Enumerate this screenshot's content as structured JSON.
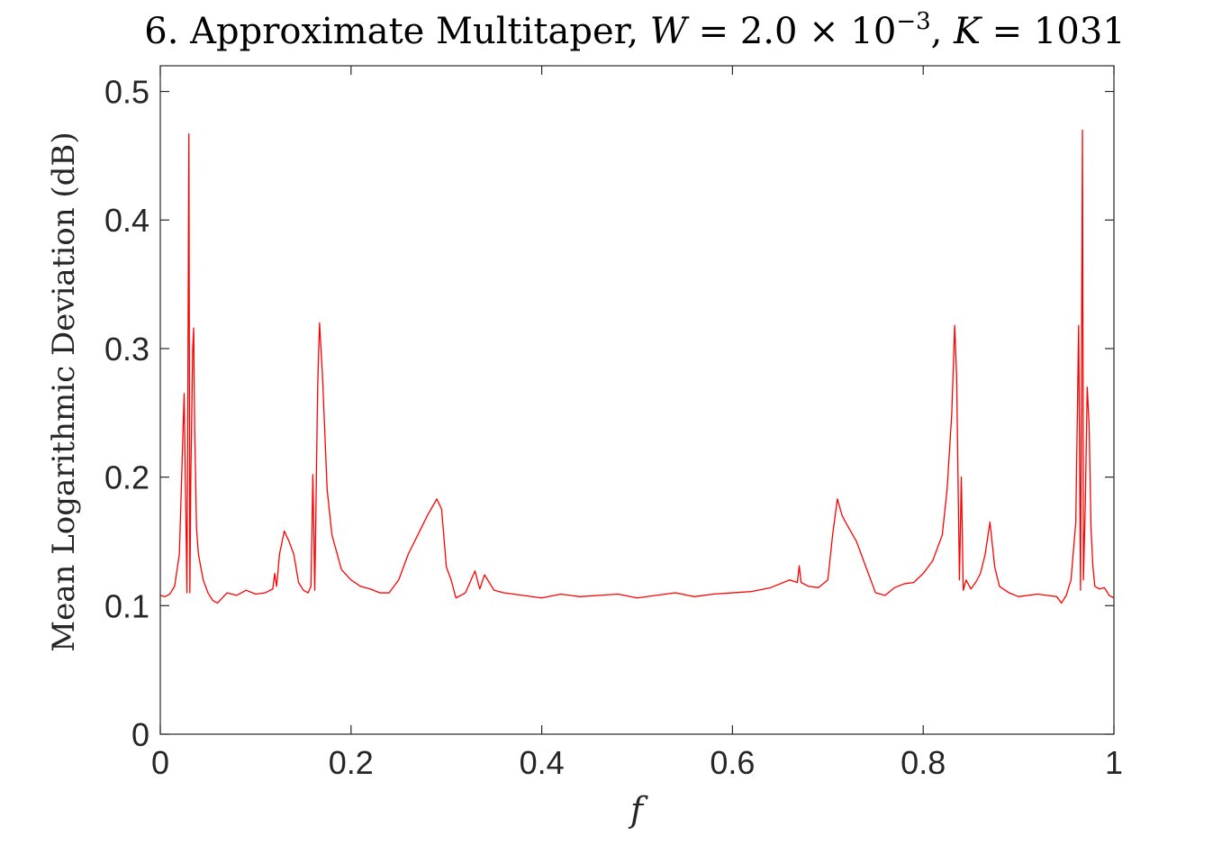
{
  "chart_data": {
    "type": "line",
    "title": "6. Approximate Multitaper, W = 2.0 × 10⁻³, K = 1031",
    "title_parts": {
      "prefix": "6. Approximate Multitaper, ",
      "w_symbol": "W",
      "w_value": " = 2.0 × 10",
      "w_exponent": "−3",
      "separator": ", ",
      "k_symbol": "K",
      "k_value": " = 1031"
    },
    "xlabel": "f",
    "ylabel": "Mean Logarithmic Deviation (dB)",
    "xlim": [
      0,
      1
    ],
    "ylim": [
      0,
      0.52
    ],
    "xticks": [
      0,
      0.2,
      0.4,
      0.6,
      0.8,
      1
    ],
    "xtick_labels": [
      "0",
      "0.2",
      "0.4",
      "0.6",
      "0.8",
      "1"
    ],
    "yticks": [
      0,
      0.1,
      0.2,
      0.3,
      0.4,
      0.5
    ],
    "ytick_labels": [
      "0",
      "0.1",
      "0.2",
      "0.3",
      "0.4",
      "0.5"
    ],
    "grid": false,
    "line_color": "#ff0000",
    "x": [
      0,
      0.005,
      0.01,
      0.015,
      0.02,
      0.025,
      0.028,
      0.03,
      0.031,
      0.032,
      0.034,
      0.035,
      0.036,
      0.038,
      0.04,
      0.045,
      0.05,
      0.055,
      0.06,
      0.07,
      0.08,
      0.09,
      0.1,
      0.11,
      0.118,
      0.12,
      0.122,
      0.125,
      0.13,
      0.135,
      0.14,
      0.145,
      0.15,
      0.155,
      0.158,
      0.16,
      0.162,
      0.165,
      0.167,
      0.17,
      0.175,
      0.18,
      0.19,
      0.2,
      0.21,
      0.22,
      0.23,
      0.24,
      0.25,
      0.26,
      0.27,
      0.28,
      0.29,
      0.295,
      0.3,
      0.305,
      0.31,
      0.32,
      0.33,
      0.335,
      0.34,
      0.345,
      0.35,
      0.36,
      0.38,
      0.4,
      0.42,
      0.44,
      0.46,
      0.48,
      0.5,
      0.52,
      0.54,
      0.56,
      0.58,
      0.6,
      0.62,
      0.64,
      0.66,
      0.668,
      0.67,
      0.672,
      0.68,
      0.69,
      0.7,
      0.705,
      0.71,
      0.715,
      0.72,
      0.73,
      0.74,
      0.75,
      0.76,
      0.77,
      0.78,
      0.79,
      0.8,
      0.81,
      0.82,
      0.825,
      0.83,
      0.833,
      0.835,
      0.838,
      0.84,
      0.842,
      0.845,
      0.85,
      0.855,
      0.86,
      0.865,
      0.87,
      0.875,
      0.88,
      0.89,
      0.9,
      0.91,
      0.92,
      0.93,
      0.94,
      0.945,
      0.95,
      0.955,
      0.96,
      0.963,
      0.965,
      0.967,
      0.968,
      0.97,
      0.972,
      0.974,
      0.976,
      0.978,
      0.98,
      0.985,
      0.99,
      0.995,
      1.0
    ],
    "y": [
      0.108,
      0.107,
      0.109,
      0.115,
      0.14,
      0.265,
      0.11,
      0.467,
      0.11,
      0.2,
      0.3,
      0.316,
      0.24,
      0.16,
      0.14,
      0.12,
      0.11,
      0.104,
      0.102,
      0.11,
      0.108,
      0.112,
      0.109,
      0.11,
      0.113,
      0.125,
      0.115,
      0.14,
      0.158,
      0.15,
      0.14,
      0.118,
      0.112,
      0.11,
      0.115,
      0.202,
      0.112,
      0.27,
      0.32,
      0.28,
      0.19,
      0.155,
      0.128,
      0.12,
      0.115,
      0.113,
      0.11,
      0.11,
      0.12,
      0.14,
      0.155,
      0.17,
      0.183,
      0.175,
      0.13,
      0.12,
      0.106,
      0.11,
      0.127,
      0.113,
      0.124,
      0.118,
      0.112,
      0.11,
      0.108,
      0.106,
      0.109,
      0.107,
      0.108,
      0.109,
      0.106,
      0.108,
      0.11,
      0.107,
      0.109,
      0.11,
      0.111,
      0.114,
      0.12,
      0.118,
      0.131,
      0.118,
      0.115,
      0.114,
      0.12,
      0.155,
      0.183,
      0.17,
      0.163,
      0.15,
      0.13,
      0.11,
      0.108,
      0.114,
      0.117,
      0.118,
      0.125,
      0.135,
      0.155,
      0.19,
      0.25,
      0.318,
      0.28,
      0.12,
      0.2,
      0.112,
      0.12,
      0.113,
      0.118,
      0.125,
      0.14,
      0.165,
      0.13,
      0.115,
      0.11,
      0.107,
      0.108,
      0.109,
      0.108,
      0.107,
      0.102,
      0.108,
      0.12,
      0.165,
      0.318,
      0.112,
      0.47,
      0.12,
      0.18,
      0.27,
      0.24,
      0.16,
      0.13,
      0.115,
      0.113,
      0.114,
      0.108,
      0.106
    ]
  }
}
